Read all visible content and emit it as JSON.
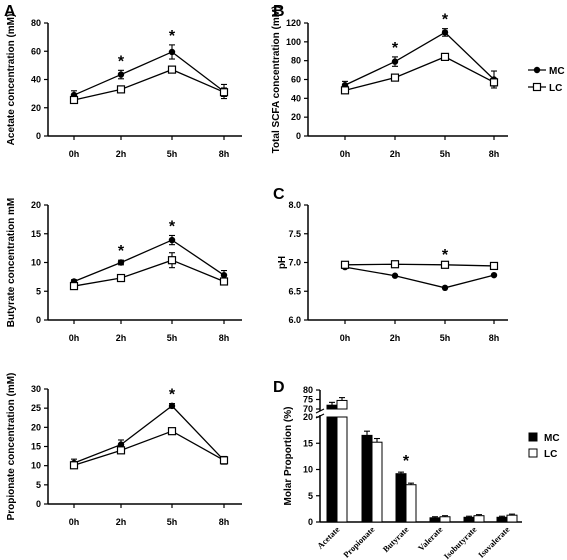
{
  "legend_line": [
    {
      "key": "MC",
      "label": "MC"
    },
    {
      "key": "LC",
      "label": "LC"
    }
  ],
  "legend_bar": [
    {
      "key": "MC",
      "label": "MC"
    },
    {
      "key": "LC",
      "label": "LC"
    }
  ],
  "chart_data": [
    {
      "id": "acetate",
      "panel": "A",
      "type": "line",
      "categories": [
        "0h",
        "2h",
        "5h",
        "8h"
      ],
      "ylabel": "Acetate concentration (mM)",
      "ylim": [
        0,
        80
      ],
      "yticks": [
        0,
        20,
        40,
        60,
        80
      ],
      "series": [
        {
          "name": "MC",
          "values": [
            29,
            43.5,
            59.5,
            31.5
          ],
          "errors": [
            3,
            3,
            5,
            5
          ]
        },
        {
          "name": "LC",
          "values": [
            25.5,
            33,
            47,
            31
          ],
          "errors": [
            1.5,
            1,
            1.5,
            3
          ]
        }
      ],
      "stars": [
        "2h",
        "5h"
      ]
    },
    {
      "id": "total",
      "panel": "B",
      "type": "line",
      "categories": [
        "0h",
        "2h",
        "5h",
        "8h"
      ],
      "ylabel": "Total SCFA concentration (mM)",
      "ylim": [
        0,
        120
      ],
      "yticks": [
        0,
        20,
        40,
        60,
        80,
        100,
        120
      ],
      "series": [
        {
          "name": "MC",
          "values": [
            54,
            79,
            110,
            60
          ],
          "errors": [
            4,
            5,
            4,
            9
          ]
        },
        {
          "name": "LC",
          "values": [
            48.5,
            62,
            84,
            57
          ],
          "errors": [
            2,
            2,
            3,
            4
          ]
        }
      ],
      "stars": [
        "2h",
        "5h"
      ]
    },
    {
      "id": "butyrate",
      "type": "line",
      "categories": [
        "0h",
        "2h",
        "5h",
        "8h"
      ],
      "ylabel": "Butyrate concentration mM",
      "ylim": [
        0,
        20
      ],
      "yticks": [
        0,
        5,
        10,
        15,
        20
      ],
      "series": [
        {
          "name": "MC",
          "values": [
            6.7,
            10,
            13.9,
            7.8
          ],
          "errors": [
            0.3,
            0.4,
            0.8,
            0.8
          ]
        },
        {
          "name": "LC",
          "values": [
            5.9,
            7.3,
            10.4,
            6.7
          ],
          "errors": [
            0.3,
            0.6,
            1.3,
            0.4
          ]
        }
      ],
      "stars": [
        "2h",
        "5h"
      ]
    },
    {
      "id": "ph",
      "panel": "C",
      "type": "line",
      "categories": [
        "0h",
        "2h",
        "5h",
        "8h"
      ],
      "ylabel": "pH",
      "ylim": [
        6.0,
        8.0
      ],
      "yticks": [
        "6.0",
        "6.5",
        "7.0",
        "7.5",
        "8.0"
      ],
      "series": [
        {
          "name": "MC",
          "values": [
            6.92,
            6.77,
            6.56,
            6.78
          ],
          "errors": [
            0.02,
            0.01,
            0.01,
            0.01
          ]
        },
        {
          "name": "LC",
          "values": [
            6.96,
            6.97,
            6.96,
            6.94
          ],
          "errors": [
            0.01,
            0.01,
            0.01,
            0.01
          ]
        }
      ],
      "stars": [
        "5h"
      ]
    },
    {
      "id": "propionate",
      "type": "line",
      "categories": [
        "0h",
        "2h",
        "5h",
        "8h"
      ],
      "ylabel": "Propionate concentration (mM)",
      "ylim": [
        0,
        30
      ],
      "yticks": [
        0,
        5,
        10,
        15,
        20,
        25,
        30
      ],
      "series": [
        {
          "name": "MC",
          "values": [
            10.7,
            15.5,
            25.6,
            11.4
          ],
          "errors": [
            1,
            1.2,
            0.6,
            1
          ]
        },
        {
          "name": "LC",
          "values": [
            10.1,
            14,
            19,
            11.4
          ],
          "errors": [
            0.5,
            0.4,
            0.4,
            0.8
          ]
        }
      ],
      "stars": [
        "5h"
      ]
    },
    {
      "id": "molar",
      "panel": "D",
      "type": "bar",
      "categories": [
        "Acetate",
        "Propionate",
        "Butyrate",
        "Valerate",
        "Isobutyrate",
        "Isovalerate"
      ],
      "ylabel": "Molar Proportion (%)",
      "axis_break": {
        "lower": [
          0,
          20
        ],
        "upper": [
          70,
          80
        ]
      },
      "yticks_lower": [
        0,
        5,
        10,
        15,
        20
      ],
      "yticks_upper": [
        70,
        75,
        80
      ],
      "series": [
        {
          "name": "MC",
          "values": [
            72,
            16.5,
            9.2,
            0.8,
            0.9,
            0.9
          ],
          "errors": [
            1.5,
            0.8,
            0.3,
            0.2,
            0.2,
            0.2
          ]
        },
        {
          "name": "LC",
          "values": [
            74.5,
            15.2,
            7.1,
            1,
            1.2,
            1.3
          ],
          "errors": [
            1.5,
            0.7,
            0.3,
            0.2,
            0.2,
            0.2
          ]
        }
      ],
      "stars": [
        "Butyrate"
      ]
    }
  ]
}
